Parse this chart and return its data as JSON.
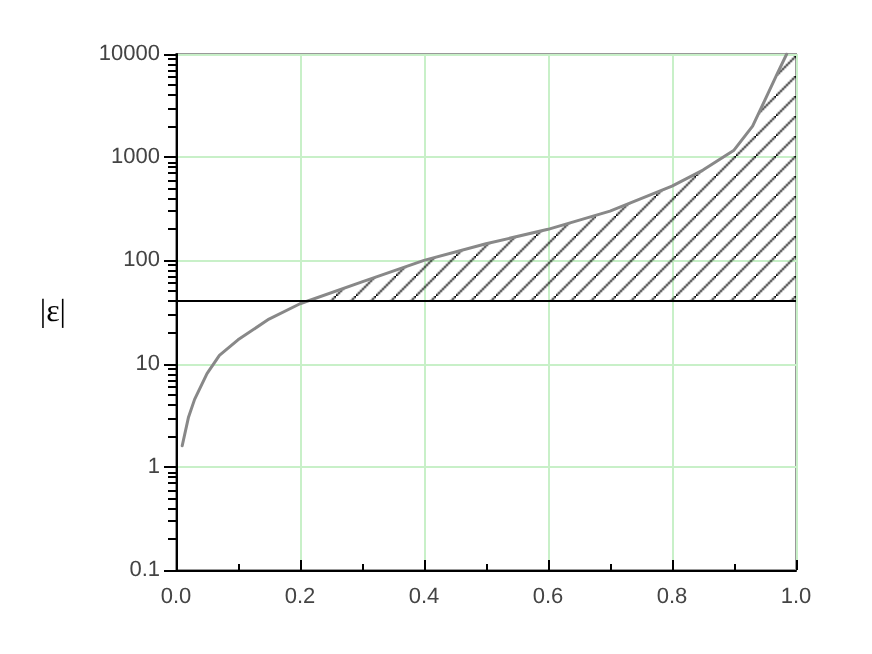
{
  "chart_data": {
    "type": "line",
    "ylabel": "|ε|",
    "log": "y",
    "grid": true,
    "marker": "none",
    "line_style": "solid",
    "xlim": [
      0,
      1
    ],
    "xticks": [
      {
        "value": 0,
        "label": "0.0"
      },
      {
        "value": 0.2,
        "label": "0.2"
      },
      {
        "value": 0.4,
        "label": "0.4"
      },
      {
        "value": 0.6,
        "label": "0.6"
      },
      {
        "value": 0.8,
        "label": "0.8"
      },
      {
        "value": 1,
        "label": "1.0"
      }
    ],
    "ylim": [
      0.1,
      10000
    ],
    "yticks": [
      0.1,
      1,
      10,
      100,
      1000,
      10000
    ],
    "ref_lines": [
      {
        "axis": "y",
        "value": 40,
        "color": "#000000",
        "line_style": "solid"
      }
    ],
    "series": [
      {
        "color": "#888888",
        "x": [
          0.01,
          0.02,
          0.03,
          0.05,
          0.07,
          0.1,
          0.15,
          0.2,
          0.3,
          0.4,
          0.5,
          0.6,
          0.7,
          0.8,
          0.85,
          0.9,
          0.93,
          0.95,
          0.97,
          0.985
        ],
        "values": [
          1.6,
          3,
          4.5,
          8,
          12,
          17,
          27,
          38,
          62,
          100,
          145,
          200,
          300,
          525,
          750,
          1170,
          2000,
          3600,
          6500,
          10000
        ]
      },
      {
        "type": "area",
        "color": "#000000",
        "x": [
          0.21,
          0.3,
          0.4,
          0.5,
          0.6,
          0.7,
          0.8,
          0.85,
          0.9,
          0.93,
          0.95,
          0.97,
          0.985,
          1
        ],
        "values": [
          40,
          62,
          100,
          145,
          200,
          300,
          525,
          750,
          1170,
          2000,
          3600,
          6500,
          10000,
          10000
        ]
      }
    ]
  }
}
